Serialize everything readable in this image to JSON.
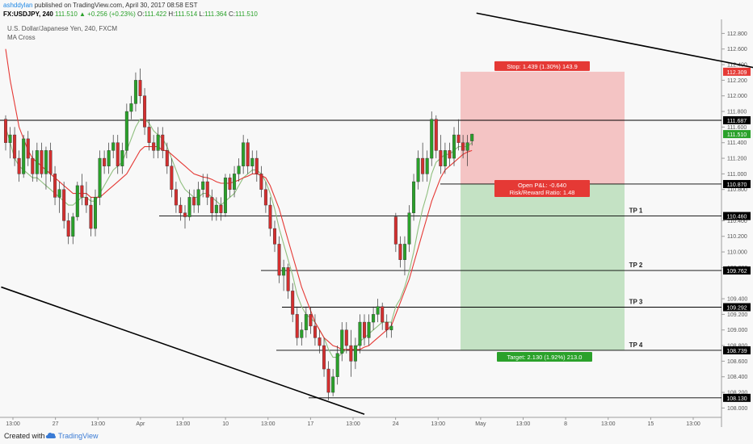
{
  "header": {
    "author": "ashddylan",
    "published_text": "published on TradingView.com, April 30, 2017 08:58 EST",
    "symbol": "FX:USDJPY, 240",
    "last": "111.510",
    "change": "▲ +0.256 (+0.23%)",
    "open_label": "O:",
    "open": "111.422",
    "high_label": "H:",
    "high": "111.514",
    "low_label": "L:",
    "low": "111.364",
    "close_label": "C:",
    "close": "111.510"
  },
  "chart_info": {
    "name": "U.S. Dollar/Japanese Yen, 240, FXCM",
    "indicator": "MA Cross"
  },
  "footer": {
    "created_with": "Created with",
    "brand": "TradingView"
  },
  "colors": {
    "up": "#2aa12a",
    "down": "#d32f2f",
    "stop_zone": "#f4c4c4",
    "target_zone": "#c4e2c4",
    "ma_fast": "#8fbf7f",
    "ma_slow": "#e53935",
    "price_line": "#000000"
  },
  "chart_data": {
    "type": "candlestick",
    "symbol": "USDJPY",
    "timeframe": "240",
    "y_axis_ticks": [
      "112.800",
      "112.600",
      "112.400",
      "112.200",
      "112.000",
      "111.800",
      "111.600",
      "111.400",
      "111.200",
      "111.000",
      "110.800",
      "110.400",
      "110.200",
      "110.000",
      "109.800",
      "109.400",
      "109.200",
      "109.000",
      "108.800",
      "108.600",
      "108.400",
      "108.200",
      "108.000"
    ],
    "ylim": [
      107.88,
      112.98
    ],
    "x_axis_ticks": [
      "13:00",
      "27",
      "13:00",
      "Apr",
      "13:00",
      "10",
      "13:00",
      "17",
      "13:00",
      "24",
      "13:00",
      "May",
      "13:00",
      "8",
      "13:00",
      "15",
      "13:00"
    ],
    "price_levels": [
      {
        "price": 111.687,
        "label": "111.687",
        "color": "#000000"
      },
      {
        "price": 110.87,
        "label": "110.870",
        "color": "#000000"
      },
      {
        "price": 110.46,
        "label": "110.460",
        "color": "#000000",
        "name": "TP 1"
      },
      {
        "price": 109.762,
        "label": "109.762",
        "color": "#000000",
        "name": "TP 2"
      },
      {
        "price": 109.292,
        "label": "109.292",
        "color": "#000000",
        "name": "TP 3"
      },
      {
        "price": 108.739,
        "label": "108.739",
        "color": "#000000",
        "name": "TP 4"
      },
      {
        "price": 108.13,
        "label": "108.130",
        "color": "#000000"
      }
    ],
    "current_price": {
      "price": 111.51,
      "label": "111.510"
    },
    "stop_price": {
      "price": 112.309,
      "label": "112.309"
    },
    "position": {
      "entry": 110.87,
      "stop": 112.309,
      "target": 108.739,
      "stop_text": "Stop: 1.439 (1.30%) 143.9",
      "open_pl_text": "Open P&L: -0.640",
      "risk_reward_text": "Risk/Reward Ratio: 1.48",
      "target_text": "Target: 2.130 (1.92%) 213.0"
    },
    "trendlines": [
      {
        "name": "upper-channel",
        "from": {
          "bar": 105,
          "price": 113.06
        },
        "to": {
          "bar": 175,
          "price": 112.27
        }
      },
      {
        "name": "lower-channel",
        "from": {
          "bar": -1,
          "price": 109.55
        },
        "to": {
          "bar": 80,
          "price": 107.92
        }
      }
    ],
    "series": [
      {
        "name": "USDJPY",
        "type": "candlestick",
        "ohlc": [
          [
            111.7,
            111.75,
            111.3,
            111.4
          ],
          [
            111.4,
            111.6,
            111.2,
            111.5
          ],
          [
            111.5,
            111.6,
            111.1,
            111.2
          ],
          [
            111.2,
            111.3,
            110.9,
            111.0
          ],
          [
            111.0,
            111.5,
            110.95,
            111.45
          ],
          [
            111.45,
            111.55,
            111.1,
            111.2
          ],
          [
            111.2,
            111.3,
            110.9,
            111.0
          ],
          [
            111.0,
            111.4,
            110.9,
            111.3
          ],
          [
            111.3,
            111.4,
            110.95,
            111.0
          ],
          [
            111.0,
            111.35,
            110.8,
            111.3
          ],
          [
            111.3,
            111.4,
            110.9,
            111.0
          ],
          [
            111.0,
            111.1,
            110.6,
            110.7
          ],
          [
            110.7,
            110.9,
            110.5,
            110.8
          ],
          [
            110.8,
            110.9,
            110.3,
            110.4
          ],
          [
            110.4,
            110.5,
            110.1,
            110.2
          ],
          [
            110.2,
            110.5,
            110.1,
            110.45
          ],
          [
            110.45,
            110.9,
            110.4,
            110.85
          ],
          [
            110.85,
            111.0,
            110.6,
            110.7
          ],
          [
            110.7,
            110.9,
            110.5,
            110.6
          ],
          [
            110.6,
            110.7,
            110.2,
            110.3
          ],
          [
            110.3,
            110.8,
            110.2,
            110.7
          ],
          [
            110.7,
            111.3,
            110.6,
            111.2
          ],
          [
            111.2,
            111.3,
            111.0,
            111.1
          ],
          [
            111.1,
            111.4,
            111.0,
            111.3
          ],
          [
            111.3,
            111.5,
            111.2,
            111.4
          ],
          [
            111.4,
            111.5,
            111.0,
            111.1
          ],
          [
            111.1,
            111.4,
            111.0,
            111.3
          ],
          [
            111.3,
            111.9,
            111.2,
            111.8
          ],
          [
            111.8,
            112.0,
            111.7,
            111.9
          ],
          [
            111.9,
            112.3,
            111.8,
            112.2
          ],
          [
            112.2,
            112.35,
            111.9,
            112.0
          ],
          [
            112.0,
            112.1,
            111.5,
            111.6
          ],
          [
            111.6,
            111.7,
            111.3,
            111.4
          ],
          [
            111.4,
            111.5,
            111.2,
            111.3
          ],
          [
            111.3,
            111.6,
            111.2,
            111.5
          ],
          [
            111.5,
            111.6,
            111.2,
            111.3
          ],
          [
            111.3,
            111.4,
            111.0,
            111.1
          ],
          [
            111.1,
            111.2,
            110.7,
            110.8
          ],
          [
            110.8,
            110.9,
            110.5,
            110.6
          ],
          [
            110.6,
            110.7,
            110.4,
            110.5
          ],
          [
            110.5,
            110.6,
            110.3,
            110.45
          ],
          [
            110.45,
            110.8,
            110.4,
            110.7
          ],
          [
            110.7,
            110.8,
            110.5,
            110.6
          ],
          [
            110.6,
            110.9,
            110.5,
            110.8
          ],
          [
            110.8,
            111.0,
            110.7,
            110.9
          ],
          [
            110.9,
            111.0,
            110.6,
            110.7
          ],
          [
            110.7,
            110.8,
            110.4,
            110.5
          ],
          [
            110.5,
            110.7,
            110.4,
            110.6
          ],
          [
            110.6,
            110.7,
            110.4,
            110.5
          ],
          [
            110.5,
            111.0,
            110.45,
            110.95
          ],
          [
            110.95,
            111.0,
            110.7,
            110.8
          ],
          [
            110.8,
            111.1,
            110.7,
            111.0
          ],
          [
            111.0,
            111.2,
            110.9,
            111.1
          ],
          [
            111.1,
            111.5,
            111.0,
            111.4
          ],
          [
            111.4,
            111.45,
            111.0,
            111.1
          ],
          [
            111.1,
            111.3,
            111.0,
            111.2
          ],
          [
            111.2,
            111.3,
            110.9,
            111.0
          ],
          [
            111.0,
            111.1,
            110.7,
            110.8
          ],
          [
            110.8,
            110.9,
            110.5,
            110.6
          ],
          [
            110.6,
            110.7,
            110.2,
            110.3
          ],
          [
            110.3,
            110.4,
            110.0,
            110.1
          ],
          [
            110.1,
            110.2,
            109.6,
            109.7
          ],
          [
            109.7,
            109.9,
            109.5,
            109.8
          ],
          [
            109.8,
            109.85,
            109.4,
            109.5
          ],
          [
            109.5,
            109.6,
            109.1,
            109.2
          ],
          [
            109.2,
            109.3,
            108.8,
            108.9
          ],
          [
            108.9,
            109.1,
            108.8,
            109.0
          ],
          [
            109.0,
            109.3,
            108.9,
            109.2
          ],
          [
            109.2,
            109.3,
            108.95,
            109.05
          ],
          [
            109.05,
            109.2,
            108.8,
            108.9
          ],
          [
            108.9,
            109.0,
            108.7,
            108.8
          ],
          [
            108.8,
            108.9,
            108.4,
            108.5
          ],
          [
            108.5,
            108.6,
            108.1,
            108.2
          ],
          [
            108.2,
            108.5,
            108.15,
            108.4
          ],
          [
            108.4,
            108.8,
            108.3,
            108.7
          ],
          [
            108.7,
            109.1,
            108.6,
            109.0
          ],
          [
            109.0,
            109.1,
            108.7,
            108.8
          ],
          [
            108.8,
            109.0,
            108.4,
            108.6
          ],
          [
            108.6,
            108.9,
            108.5,
            108.8
          ],
          [
            108.8,
            109.2,
            108.7,
            109.1
          ],
          [
            109.1,
            109.2,
            108.8,
            108.9
          ],
          [
            108.9,
            109.2,
            108.8,
            109.1
          ],
          [
            109.1,
            109.3,
            109.0,
            109.2
          ],
          [
            109.2,
            109.4,
            109.1,
            109.3
          ],
          [
            109.3,
            109.35,
            109.0,
            109.1
          ],
          [
            109.1,
            109.2,
            108.9,
            109.0
          ],
          [
            109.0,
            109.1,
            108.9,
            109.05
          ],
          [
            110.45,
            110.5,
            110.0,
            110.1
          ],
          [
            110.1,
            110.2,
            109.8,
            109.9
          ],
          [
            109.9,
            110.2,
            109.7,
            110.1
          ],
          [
            110.1,
            110.6,
            110.0,
            110.5
          ],
          [
            110.5,
            111.0,
            110.4,
            110.9
          ],
          [
            110.9,
            111.3,
            110.8,
            111.2
          ],
          [
            111.2,
            111.4,
            110.9,
            111.0
          ],
          [
            111.0,
            111.3,
            110.9,
            111.2
          ],
          [
            111.2,
            111.8,
            111.1,
            111.7
          ],
          [
            111.7,
            111.75,
            111.2,
            111.3
          ],
          [
            111.3,
            111.5,
            111.0,
            111.1
          ],
          [
            111.1,
            111.4,
            111.0,
            111.3
          ],
          [
            111.3,
            111.4,
            111.1,
            111.2
          ],
          [
            111.2,
            111.6,
            111.1,
            111.5
          ],
          [
            111.5,
            111.7,
            111.3,
            111.4
          ],
          [
            111.4,
            111.5,
            111.2,
            111.3
          ],
          [
            111.3,
            111.5,
            111.1,
            111.4
          ],
          [
            111.422,
            111.514,
            111.364,
            111.51
          ]
        ]
      },
      {
        "name": "MA fast",
        "type": "line",
        "values": [
          111.6,
          111.4,
          111.2,
          111.1,
          111.05,
          111.0,
          110.95,
          110.95,
          110.9,
          110.85,
          110.8,
          110.75,
          110.7,
          110.65,
          110.6,
          110.6,
          110.65,
          110.7,
          110.7,
          110.65,
          110.65,
          110.75,
          110.85,
          110.95,
          111.05,
          111.1,
          111.15,
          111.3,
          111.45,
          111.6,
          111.7,
          111.7,
          111.65,
          111.55,
          111.5,
          111.45,
          111.35,
          111.2,
          111.05,
          110.9,
          110.8,
          110.75,
          110.7,
          110.7,
          110.75,
          110.75,
          110.7,
          110.65,
          110.6,
          110.65,
          110.7,
          110.75,
          110.85,
          110.95,
          111.0,
          111.05,
          111.05,
          111.0,
          110.9,
          110.75,
          110.55,
          110.3,
          110.1,
          109.9,
          109.7,
          109.45,
          109.3,
          109.2,
          109.15,
          109.1,
          109.0,
          108.9,
          108.75,
          108.65,
          108.65,
          108.7,
          108.75,
          108.75,
          108.75,
          108.85,
          108.9,
          108.95,
          109.0,
          109.05,
          109.1,
          109.1,
          109.1,
          109.3,
          109.4,
          109.55,
          109.75,
          110.0,
          110.3,
          110.55,
          110.75,
          111.0,
          111.15,
          111.2,
          111.25,
          111.25,
          111.3,
          111.35,
          111.35,
          111.35,
          111.4
        ]
      },
      {
        "name": "MA slow",
        "type": "line",
        "values": [
          112.6,
          112.2,
          111.9,
          111.6,
          111.45,
          111.3,
          111.2,
          111.15,
          111.1,
          111.05,
          111.0,
          110.95,
          110.9,
          110.85,
          110.8,
          110.75,
          110.75,
          110.75,
          110.75,
          110.7,
          110.7,
          110.7,
          110.75,
          110.8,
          110.85,
          110.9,
          110.95,
          111.0,
          111.1,
          111.2,
          111.3,
          111.35,
          111.35,
          111.35,
          111.35,
          111.3,
          111.3,
          111.25,
          111.2,
          111.15,
          111.1,
          111.05,
          111.0,
          110.98,
          110.96,
          110.95,
          110.93,
          110.9,
          110.88,
          110.88,
          110.88,
          110.9,
          110.92,
          110.95,
          110.97,
          111.0,
          111.0,
          110.98,
          110.95,
          110.85,
          110.7,
          110.55,
          110.35,
          110.15,
          109.95,
          109.75,
          109.55,
          109.4,
          109.25,
          109.1,
          109.0,
          108.9,
          108.85,
          108.8,
          108.78,
          108.75,
          108.75,
          108.75,
          108.75,
          108.75,
          108.78,
          108.8,
          108.85,
          108.9,
          108.95,
          109.0,
          109.05,
          109.2,
          109.35,
          109.5,
          109.65,
          109.85,
          110.05,
          110.25,
          110.45,
          110.65,
          110.8,
          110.95,
          111.05,
          111.1,
          111.15,
          111.2,
          111.25,
          111.28,
          111.3
        ]
      }
    ]
  }
}
